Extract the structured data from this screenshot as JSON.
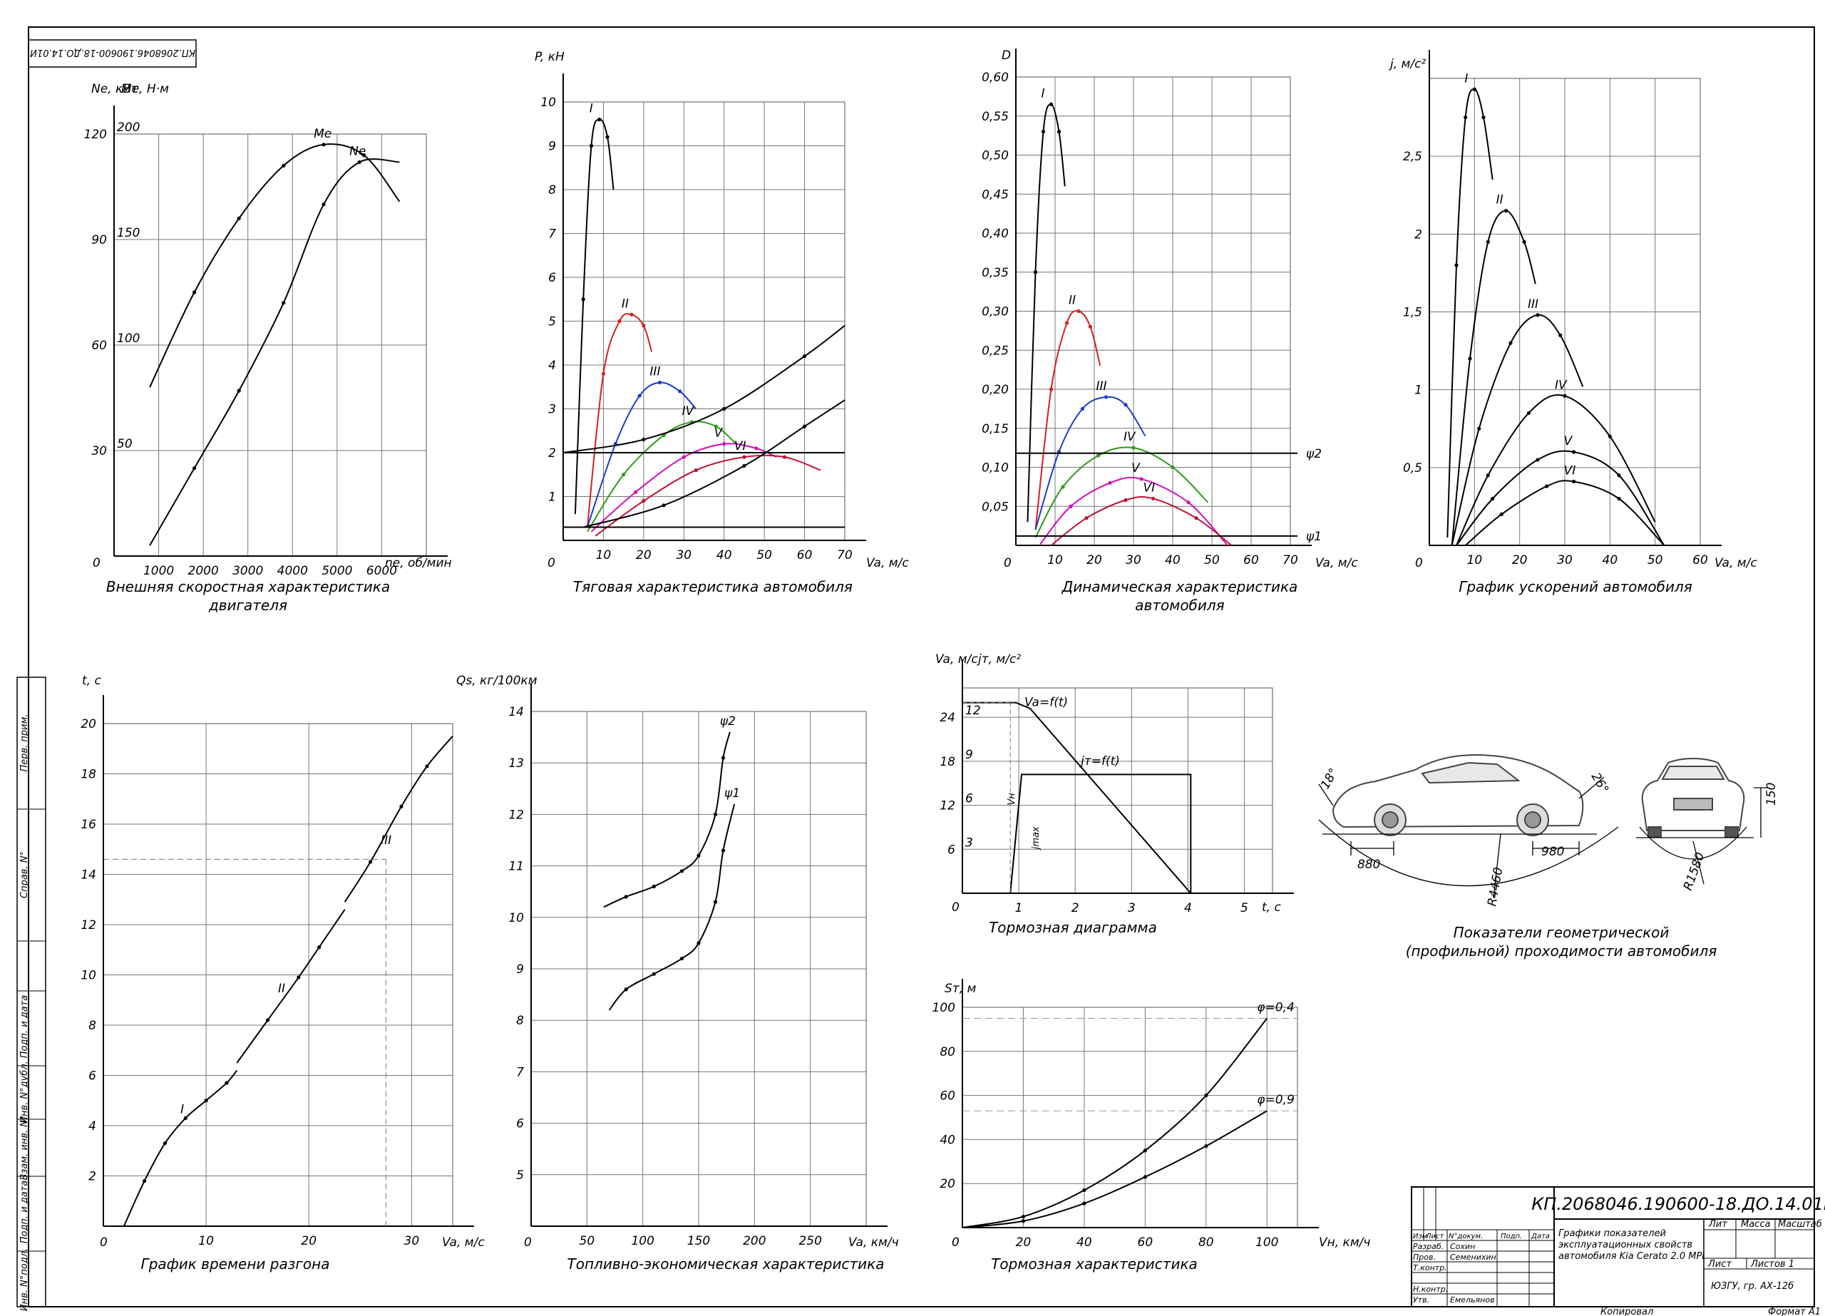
{
  "sheet": {
    "code_stamp": "КП.2068046.190600-18.ДО.14.01И",
    "format": "Формат А1",
    "copied": "Копировал"
  },
  "title_block": {
    "code": "КП.2068046.190600-18.ДО.14.01И",
    "title_lines": [
      "Графики показателей",
      "эксплуатационных свойств",
      "автомобиля Kia Cerato 2.0 MPI"
    ],
    "org": "ЮЗГУ, гр. АХ-12б",
    "sheet_label": "Листов 1",
    "list_label": "Лист",
    "lit_label": "Лит",
    "mass_label": "Масса",
    "scale_label": "Масштаб",
    "head_izm": "Изм",
    "head_list": "Лист",
    "head_doc": "N°докум.",
    "head_sign": "Подп.",
    "head_date": "Дата",
    "role_1": "Разраб.",
    "name_1": "Сохин",
    "role_2": "Пров.",
    "name_2": "Семенихин",
    "role_3": "Т.контр.",
    "role_4": "Н.контр.",
    "role_5": "Утв.",
    "name_5": "Емельянов"
  },
  "side_stamp": [
    "Перв. прим.",
    "Справ. N°",
    "Подп. и дата",
    "Инв. N°дубл.",
    "Взам. инв. N°",
    "Подп. и дата",
    "Инв. N°подл."
  ],
  "geometry_note": {
    "caption_1": "Показатели геометрической",
    "caption_2": "(профильной) проходимости автомобиля",
    "angle_front": "18°",
    "angle_rear": "26°",
    "dim_front": "880",
    "dim_rear": "980",
    "radius_long": "R4460",
    "radius_cross": "R1580",
    "clearance": "150"
  },
  "chart_data": [
    {
      "id": "engine",
      "type": "line",
      "title": "Внешняя скоростная характеристика",
      "title_2": "двигателя",
      "xlabel": "nе, об/мин",
      "ylabel": "Nе, кВт",
      "y2label": "Mе, Н·м",
      "xlim": [
        0,
        7000
      ],
      "ylim": [
        0,
        120
      ],
      "y2lim": [
        0,
        200
      ],
      "x_ticks": [
        "1000",
        "2000",
        "3000",
        "4000",
        "5000",
        "6000"
      ],
      "y_ticks": [
        "30",
        "60",
        "90",
        "120"
      ],
      "y2_ticks": [
        "50",
        "100",
        "150",
        "200"
      ],
      "origin_label": "0",
      "series": [
        {
          "name": "Mе",
          "axis": "y2",
          "x": [
            800,
            1800,
            2800,
            3800,
            4700,
            5600,
            6400
          ],
          "values": [
            80,
            125,
            160,
            185,
            195,
            190,
            168
          ]
        },
        {
          "name": "Nе",
          "axis": "y",
          "x": [
            800,
            1800,
            2800,
            3800,
            4700,
            5500,
            6400
          ],
          "values": [
            3,
            25,
            47,
            72,
            100,
            112,
            112
          ]
        }
      ]
    },
    {
      "id": "traction",
      "type": "line",
      "title": "Тяговая характеристика  автомобиля",
      "xlabel": "Va, м/с",
      "ylabel": "P, кН",
      "xlim": [
        0,
        70
      ],
      "ylim": [
        0,
        10
      ],
      "x_ticks": [
        "10",
        "20",
        "30",
        "40",
        "50",
        "60",
        "70"
      ],
      "y_ticks": [
        "1",
        "2",
        "3",
        "4",
        "5",
        "6",
        "7",
        "8",
        "9",
        "10"
      ],
      "origin_label": "0",
      "series": [
        {
          "name": "I",
          "x": [
            3,
            5,
            7,
            9,
            11,
            12.5
          ],
          "values": [
            0.6,
            5.5,
            9.0,
            9.6,
            9.2,
            8.0
          ]
        },
        {
          "name": "II",
          "x": [
            6,
            10,
            14,
            17,
            20,
            22
          ],
          "values": [
            0.3,
            3.8,
            5.0,
            5.15,
            4.9,
            4.3
          ]
        },
        {
          "name": "III",
          "x": [
            6,
            13,
            19,
            24,
            29,
            33
          ],
          "values": [
            0.3,
            2.2,
            3.3,
            3.6,
            3.4,
            3.0
          ]
        },
        {
          "name": "IV",
          "x": [
            6,
            15,
            25,
            32,
            38,
            43
          ],
          "values": [
            0.2,
            1.5,
            2.4,
            2.7,
            2.6,
            2.2
          ]
        },
        {
          "name": "V",
          "x": [
            7,
            18,
            30,
            40,
            48,
            53
          ],
          "values": [
            0.2,
            1.1,
            1.9,
            2.2,
            2.1,
            1.9
          ]
        },
        {
          "name": "VI",
          "x": [
            8,
            20,
            33,
            45,
            55,
            64
          ],
          "values": [
            0.1,
            0.9,
            1.6,
            1.9,
            1.9,
            1.6
          ]
        },
        {
          "name": "",
          "x": [
            0,
            70
          ],
          "values": [
            2,
            2
          ]
        },
        {
          "name": "",
          "x": [
            0,
            70
          ],
          "values": [
            0.3,
            0.3
          ]
        },
        {
          "name": "",
          "x": [
            0,
            20,
            40,
            60,
            70
          ],
          "values": [
            2.0,
            2.3,
            3.0,
            4.2,
            4.9
          ]
        },
        {
          "name": "",
          "x": [
            5,
            25,
            45,
            60,
            70
          ],
          "values": [
            0.3,
            0.8,
            1.7,
            2.6,
            3.2
          ]
        }
      ]
    },
    {
      "id": "dynamic",
      "type": "line",
      "title": "Динамическая характеристика",
      "title_2": "автомобиля",
      "xlabel": "Va, м/с",
      "ylabel": "D",
      "xlim": [
        0,
        70
      ],
      "ylim": [
        0,
        0.6
      ],
      "x_ticks": [
        "10",
        "20",
        "30",
        "40",
        "50",
        "60",
        "70"
      ],
      "y_ticks": [
        "0,05",
        "0,10",
        "0,15",
        "0,20",
        "0,25",
        "0,30",
        "0,35",
        "0,40",
        "0,45",
        "0,50",
        "0,55",
        "0,60"
      ],
      "origin_label": "0",
      "series": [
        {
          "name": "I",
          "x": [
            3,
            5,
            7,
            9,
            11,
            12.5
          ],
          "values": [
            0.03,
            0.35,
            0.53,
            0.565,
            0.53,
            0.46
          ]
        },
        {
          "name": "II",
          "x": [
            5,
            9,
            13,
            16,
            19,
            21.5
          ],
          "values": [
            0.02,
            0.2,
            0.285,
            0.3,
            0.28,
            0.23
          ]
        },
        {
          "name": "III",
          "x": [
            5,
            11,
            17,
            23,
            28,
            33
          ],
          "values": [
            0.02,
            0.12,
            0.175,
            0.19,
            0.18,
            0.14
          ]
        },
        {
          "name": "IV",
          "x": [
            5,
            12,
            21,
            30,
            40,
            49
          ],
          "values": [
            0.01,
            0.075,
            0.115,
            0.125,
            0.1,
            0.055
          ]
        },
        {
          "name": "V",
          "x": [
            6,
            14,
            24,
            32,
            44,
            54
          ],
          "values": [
            0.0,
            0.05,
            0.08,
            0.085,
            0.055,
            0.0
          ]
        },
        {
          "name": "VI",
          "x": [
            9,
            18,
            28,
            35,
            46,
            55
          ],
          "values": [
            0.0,
            0.035,
            0.058,
            0.06,
            0.035,
            0.0
          ]
        }
      ],
      "hlines": [
        {
          "label": "ψ2",
          "value": 0.118
        },
        {
          "label": "ψ1",
          "value": 0.012
        }
      ]
    },
    {
      "id": "accel",
      "type": "line",
      "title": "График ускорений автомобиля",
      "xlabel": "Va, м/с",
      "ylabel": "j, м/с²",
      "xlim": [
        0,
        60
      ],
      "ylim": [
        0,
        3
      ],
      "x_ticks": [
        "10",
        "20",
        "30",
        "40",
        "50",
        "60"
      ],
      "y_ticks": [
        "0,5",
        "1",
        "1,5",
        "2",
        "2,5"
      ],
      "origin_label": "0",
      "series": [
        {
          "name": "I",
          "x": [
            4,
            6,
            8,
            10,
            12,
            14
          ],
          "values": [
            0.05,
            1.8,
            2.75,
            2.93,
            2.75,
            2.35
          ]
        },
        {
          "name": "II",
          "x": [
            5,
            9,
            13,
            17,
            21,
            23.5
          ],
          "values": [
            0.0,
            1.2,
            1.95,
            2.15,
            1.95,
            1.68
          ]
        },
        {
          "name": "III",
          "x": [
            5,
            11,
            18,
            24,
            29,
            34
          ],
          "values": [
            0.0,
            0.75,
            1.3,
            1.48,
            1.35,
            1.02
          ]
        },
        {
          "name": "IV",
          "x": [
            6,
            13,
            22,
            30,
            40,
            50
          ],
          "values": [
            0.0,
            0.45,
            0.85,
            0.96,
            0.7,
            0.15
          ]
        },
        {
          "name": "V",
          "x": [
            6,
            14,
            24,
            32,
            42,
            52
          ],
          "values": [
            0.0,
            0.3,
            0.55,
            0.6,
            0.45,
            0.0
          ]
        },
        {
          "name": "VI",
          "x": [
            8,
            16,
            26,
            32,
            42,
            52
          ],
          "values": [
            0.0,
            0.2,
            0.38,
            0.41,
            0.3,
            0.0
          ]
        }
      ]
    },
    {
      "id": "accel_time",
      "type": "line",
      "title": "График времени разгона",
      "xlabel": "Va, м/с",
      "ylabel": "t, с",
      "xlim": [
        0,
        34
      ],
      "ylim": [
        0,
        20
      ],
      "x_ticks": [
        "10",
        "20",
        "30"
      ],
      "y_ticks": [
        "2",
        "4",
        "6",
        "8",
        "10",
        "12",
        "14",
        "16",
        "18",
        "20"
      ],
      "origin_label": "0",
      "series": [
        {
          "name": "",
          "x": [
            2,
            4,
            6,
            8,
            10,
            12,
            13
          ],
          "values": [
            0,
            1.8,
            3.3,
            4.3,
            5.0,
            5.7,
            6.2
          ]
        },
        {
          "name": "",
          "x": [
            13,
            16,
            19,
            21,
            23.5
          ],
          "values": [
            6.5,
            8.2,
            9.9,
            11.1,
            12.6
          ]
        },
        {
          "name": "",
          "x": [
            23.5,
            26,
            29,
            31.5,
            34
          ],
          "values": [
            12.9,
            14.5,
            16.7,
            18.3,
            19.5
          ]
        }
      ],
      "labels": [
        "I",
        "II",
        "III"
      ],
      "ref_x": 27.5,
      "ref_y": 14.6
    },
    {
      "id": "fuel",
      "type": "line",
      "title": "Топливно-экономическая характеристика",
      "xlabel": "Va, км/ч",
      "ylabel": "Qs, кг/100км",
      "xlim": [
        0,
        300
      ],
      "ylim": [
        4,
        14
      ],
      "x_ticks": [
        "50",
        "100",
        "150",
        "200",
        "250"
      ],
      "y_ticks": [
        "5",
        "6",
        "7",
        "8",
        "9",
        "10",
        "11",
        "12",
        "13",
        "14"
      ],
      "origin_label": "0",
      "series": [
        {
          "name": "ψ2",
          "x": [
            65,
            85,
            110,
            135,
            150,
            165,
            172,
            178
          ],
          "values": [
            10.2,
            10.4,
            10.6,
            10.9,
            11.2,
            12.0,
            13.1,
            13.6
          ]
        },
        {
          "name": "ψ1",
          "x": [
            70,
            85,
            110,
            135,
            150,
            165,
            172,
            182
          ],
          "values": [
            8.2,
            8.6,
            8.9,
            9.2,
            9.5,
            10.3,
            11.3,
            12.2
          ]
        }
      ]
    },
    {
      "id": "brake_diagram",
      "type": "line",
      "title": "Тормозная диаграмма",
      "xlabel": "t, с",
      "ylabel": "Va, м/с",
      "y2label": "jт, м/с²",
      "xlim": [
        0,
        5.5
      ],
      "ylim": [
        0,
        28
      ],
      "x_ticks": [
        "1",
        "2",
        "3",
        "4",
        "5"
      ],
      "y_ticks": [
        "6",
        "12",
        "18",
        "24"
      ],
      "y2_ticks": [
        "3",
        "6",
        "9",
        "12"
      ],
      "origin_label": "0",
      "va_label": "Va=f(t)",
      "jt_label": "jт=f(t)",
      "vn_label": "Vн",
      "jmax_label": "jmax",
      "series": [
        {
          "name": "Va=f(t)",
          "x": [
            0,
            0.95,
            1.2,
            4.05
          ],
          "values": [
            26,
            26,
            25.2,
            0
          ]
        },
        {
          "name": "jт=f(t)",
          "x": [
            0.85,
            1.05,
            1.05,
            4.05,
            4.05
          ],
          "values": [
            0,
            16.2,
            16.2,
            16.2,
            0
          ]
        }
      ]
    },
    {
      "id": "brake_path",
      "type": "line",
      "title": "Тормозная характеристика",
      "xlabel": "Vн, км/ч",
      "ylabel": "Sт, м",
      "xlim": [
        0,
        110
      ],
      "ylim": [
        0,
        100
      ],
      "x_ticks": [
        "20",
        "40",
        "60",
        "80",
        "100"
      ],
      "y_ticks": [
        "20",
        "40",
        "60",
        "80",
        "100"
      ],
      "origin_label": "0",
      "series": [
        {
          "name": "φ=0,4",
          "x": [
            0,
            20,
            40,
            60,
            80,
            100
          ],
          "values": [
            0,
            5,
            17,
            35,
            60,
            95
          ]
        },
        {
          "name": "φ=0,9",
          "x": [
            0,
            20,
            40,
            60,
            80,
            100
          ],
          "values": [
            0,
            3,
            11,
            23,
            37,
            53
          ]
        }
      ]
    }
  ]
}
